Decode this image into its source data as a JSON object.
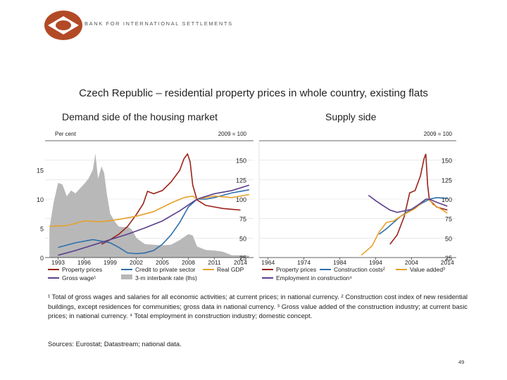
{
  "header": {
    "brand": "BANK FOR INTERNATIONAL SETTLEMENTS"
  },
  "slide": {
    "title": "Czech Republic – residential property prices in whole country, existing flats",
    "left_subtitle": "Demand side of the housing market",
    "right_subtitle": "Supply side",
    "footnotes": [
      "¹  Total of gross wages and salaries for all economic activities; at current prices; in national currency.",
      "²  Construction cost index of new residential buildings, except residences for communities; gross data in national currency.",
      "³  Gross value added of the construction industry; at current basic prices; in national currency.",
      "⁴  Total employment in construction industry; domestic concept."
    ],
    "sources": "Sources: Eurostat; Datastream; national data.",
    "page_number": "49"
  },
  "colors": {
    "property": "#9a2218",
    "credit": "#2d6fae",
    "gdp": "#e7a02a",
    "wage": "#5a3f8c",
    "interbank": "#b8b8b8",
    "construction_costs": "#2d6fae",
    "value_added": "#e7a02a",
    "employment": "#5a3f8c",
    "logo": "#b24a26"
  },
  "chart_data": [
    {
      "type": "line",
      "panel": "left",
      "title": "Demand side of the housing market",
      "left_axis_label": "Per cent",
      "right_axis_label": "2009 = 100",
      "x_range": [
        1991.5,
        2015.5
      ],
      "x_ticks": [
        "1993",
        "1996",
        "1999",
        "2002",
        "2005",
        "2008",
        "2011",
        "2014"
      ],
      "x_tick_values": [
        1993,
        1996,
        1999,
        2002,
        2005,
        2008,
        2011,
        2014
      ],
      "left_ylim": [
        0,
        20
      ],
      "left_ticks": [
        "0",
        "5",
        "10",
        "15"
      ],
      "left_tick_values": [
        0,
        5,
        10,
        15
      ],
      "right_ylim": [
        25,
        175
      ],
      "right_ticks": [
        "25",
        "50",
        "75",
        "100",
        "125",
        "150"
      ],
      "right_tick_values": [
        25,
        50,
        75,
        100,
        125,
        150
      ],
      "area_series": {
        "name": "3-m interbank rate (lhs)",
        "x": [
          1992.0,
          1992.5,
          1993.0,
          1993.5,
          1994.0,
          1994.5,
          1995.0,
          1995.5,
          1996.0,
          1996.5,
          1997.0,
          1997.3,
          1997.6,
          1998.0,
          1998.3,
          1998.6,
          1999.0,
          1999.5,
          2000.0,
          2000.5,
          2001.0,
          2001.5,
          2002.0,
          2002.5,
          2003.0,
          2004.0,
          2005.0,
          2006.0,
          2007.0,
          2008.0,
          2008.5,
          2009.0,
          2010.0,
          2011.0,
          2012.0,
          2013.0,
          2014.0,
          2015.0
        ],
        "values": [
          5.0,
          9.5,
          12.8,
          12.5,
          10.5,
          11.5,
          11.0,
          11.8,
          12.6,
          13.5,
          15.0,
          17.8,
          13.5,
          15.6,
          14.5,
          11.0,
          7.5,
          6.2,
          5.3,
          5.2,
          5.3,
          4.8,
          3.4,
          2.8,
          2.3,
          2.2,
          2.1,
          2.2,
          3.0,
          4.0,
          3.8,
          1.9,
          1.3,
          1.2,
          1.0,
          0.4,
          0.4,
          0.3
        ]
      },
      "series": [
        {
          "name": "Property prices",
          "x": [
            1998.0,
            1999.0,
            2000.0,
            2001.0,
            2002.0,
            2002.8,
            2003.3,
            2004.0,
            2005.0,
            2006.0,
            2007.0,
            2007.5,
            2007.9,
            2008.2,
            2008.5,
            2009.0,
            2010.0,
            2011.0,
            2012.0,
            2013.0,
            2014.0
          ],
          "values": [
            42,
            48,
            55,
            65,
            80,
            94,
            110,
            107,
            111,
            122,
            137,
            152,
            158,
            148,
            118,
            99,
            92,
            90,
            88,
            87,
            86
          ]
        },
        {
          "name": "Credit to private sector",
          "x": [
            1993.0,
            1995.0,
            1997.0,
            1999.0,
            2000.0,
            2001.0,
            2002.0,
            2003.0,
            2004.0,
            2005.0,
            2006.0,
            2007.0,
            2008.0,
            2009.0,
            2010.0,
            2011.0,
            2012.0,
            2013.0,
            2014.0,
            2015.0
          ],
          "values": [
            38,
            44,
            48,
            44,
            38,
            31,
            30,
            31,
            34,
            42,
            54,
            70,
            90,
            100,
            100,
            102,
            105,
            108,
            110,
            112
          ]
        },
        {
          "name": "Real GDP",
          "x": [
            1992.0,
            1994.0,
            1996.0,
            1998.0,
            2000.0,
            2002.0,
            2004.0,
            2006.0,
            2007.5,
            2008.5,
            2009.0,
            2010.0,
            2011.0,
            2012.0,
            2013.0,
            2014.0,
            2015.0
          ],
          "values": [
            65,
            66,
            72,
            71,
            74,
            78,
            84,
            95,
            102,
            104,
            100,
            102,
            104,
            103,
            102,
            104,
            106
          ]
        },
        {
          "name": "Gross wage¹",
          "x": [
            1993.0,
            1995.0,
            1997.0,
            1999.0,
            2001.0,
            2003.0,
            2005.0,
            2007.0,
            2009.0,
            2011.0,
            2013.0,
            2015.0
          ],
          "values": [
            28,
            34,
            41,
            48,
            55,
            63,
            72,
            85,
            100,
            107,
            111,
            118
          ]
        }
      ]
    },
    {
      "type": "line",
      "panel": "right",
      "title": "Supply side",
      "right_axis_label": "2009 = 100",
      "x_range": [
        1961.5,
        2016.5
      ],
      "x_ticks": [
        "1964",
        "1974",
        "1984",
        "1994",
        "2004",
        "2014"
      ],
      "x_tick_values": [
        1964,
        1974,
        1984,
        1994,
        2004,
        2014
      ],
      "ylim": [
        25,
        175
      ],
      "y_ticks": [
        "25",
        "50",
        "75",
        "100",
        "125",
        "150"
      ],
      "y_tick_values": [
        25,
        50,
        75,
        100,
        125,
        150
      ],
      "series": [
        {
          "name": "Property prices",
          "x": [
            1998.0,
            2000.0,
            2002.0,
            2003.5,
            2005.0,
            2006.5,
            2007.5,
            2008.0,
            2008.5,
            2009.0,
            2011.0,
            2014.0
          ],
          "values": [
            42,
            54,
            78,
            108,
            111,
            130,
            152,
            158,
            118,
            99,
            90,
            86
          ]
        },
        {
          "name": "Construction costs²",
          "x": [
            1995.0,
            1997.0,
            1999.0,
            2001.0,
            2003.0,
            2005.0,
            2007.0,
            2009.0,
            2011.0,
            2014.0
          ],
          "values": [
            55,
            62,
            70,
            78,
            84,
            89,
            95,
            100,
            102,
            101
          ]
        },
        {
          "name": "Value added³",
          "x": [
            1990.0,
            1991.0,
            1993.0,
            1995.0,
            1997.0,
            1999.0,
            2001.0,
            2003.0,
            2005.0,
            2007.0,
            2008.0,
            2009.0,
            2010.0,
            2012.0,
            2014.0
          ],
          "values": [
            28,
            32,
            40,
            58,
            70,
            72,
            78,
            83,
            88,
            96,
            100,
            100,
            93,
            88,
            82
          ]
        },
        {
          "name": "Employment in construction⁴",
          "x": [
            1992.0,
            1994.0,
            1996.0,
            1998.0,
            2000.0,
            2002.0,
            2004.0,
            2006.0,
            2008.0,
            2009.0,
            2011.0,
            2014.0
          ],
          "values": [
            105,
            98,
            92,
            86,
            83,
            85,
            87,
            93,
            100,
            100,
            96,
            91
          ]
        }
      ]
    }
  ]
}
